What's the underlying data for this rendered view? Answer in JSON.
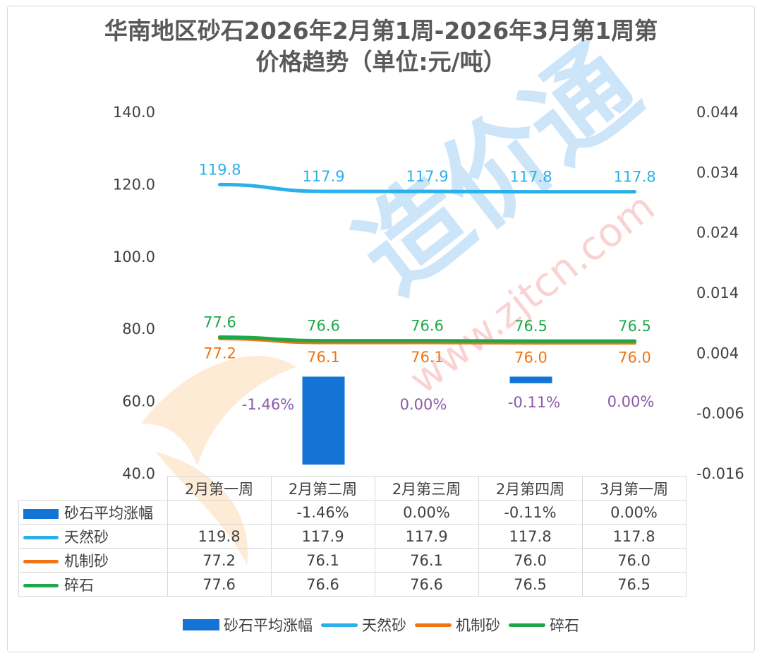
{
  "title_line1": "华南地区砂石2026年2月第1周-2026年3月第1周第",
  "title_line2": "价格趋势（单位:元/吨）",
  "colors": {
    "bar": "#1374d6",
    "natural_sand": "#2ab0ea",
    "machine_sand": "#f07414",
    "gravel": "#1fa84a",
    "pct_label": "#8b5aa8"
  },
  "chart_data": {
    "type": "bar+line",
    "categories": [
      "2月第一周",
      "2月第二周",
      "2月第三周",
      "2月第四周",
      "3月第一周"
    ],
    "left_axis": {
      "ylim": [
        40,
        140
      ],
      "ticks": [
        "140.0",
        "120.0",
        "100.0",
        "80.0",
        "60.0",
        "40.0"
      ]
    },
    "right_axis": {
      "ylim": [
        -0.016,
        0.044
      ],
      "ticks": [
        "0.044",
        "0.034",
        "0.024",
        "0.014",
        "0.004",
        "-0.006",
        "-0.016"
      ]
    },
    "series": [
      {
        "name": "砂石平均涨幅",
        "type": "bar",
        "axis": "right",
        "values": [
          null,
          -0.0146,
          0.0,
          -0.0011,
          0.0
        ],
        "labels": [
          "",
          "-1.46%",
          "0.00%",
          "-0.11%",
          "0.00%"
        ]
      },
      {
        "name": "天然砂",
        "type": "line",
        "axis": "left",
        "values": [
          119.8,
          117.9,
          117.9,
          117.8,
          117.8
        ],
        "labels": [
          "119.8",
          "117.9",
          "117.9",
          "117.8",
          "117.8"
        ]
      },
      {
        "name": "机制砂",
        "type": "line",
        "axis": "left",
        "values": [
          77.2,
          76.1,
          76.1,
          76.0,
          76.0
        ],
        "labels": [
          "77.2",
          "76.1",
          "76.1",
          "76.0",
          "76.0"
        ]
      },
      {
        "name": "碎石",
        "type": "line",
        "axis": "left",
        "values": [
          77.6,
          76.6,
          76.6,
          76.5,
          76.5
        ],
        "labels": [
          "77.6",
          "76.6",
          "76.6",
          "76.5",
          "76.5"
        ]
      }
    ]
  },
  "table": {
    "rows": [
      {
        "key": "砂石平均涨幅",
        "cells": [
          "",
          "-1.46%",
          "0.00%",
          "-0.11%",
          "0.00%"
        ]
      },
      {
        "key": "天然砂",
        "cells": [
          "119.8",
          "117.9",
          "117.9",
          "117.8",
          "117.8"
        ]
      },
      {
        "key": "机制砂",
        "cells": [
          "77.2",
          "76.1",
          "76.1",
          "76.0",
          "76.0"
        ]
      },
      {
        "key": "碎石",
        "cells": [
          "77.6",
          "76.6",
          "76.6",
          "76.5",
          "76.5"
        ]
      }
    ]
  },
  "watermark": {
    "logo_text": "造价通",
    "url_text": "www.zjtcn.com"
  }
}
